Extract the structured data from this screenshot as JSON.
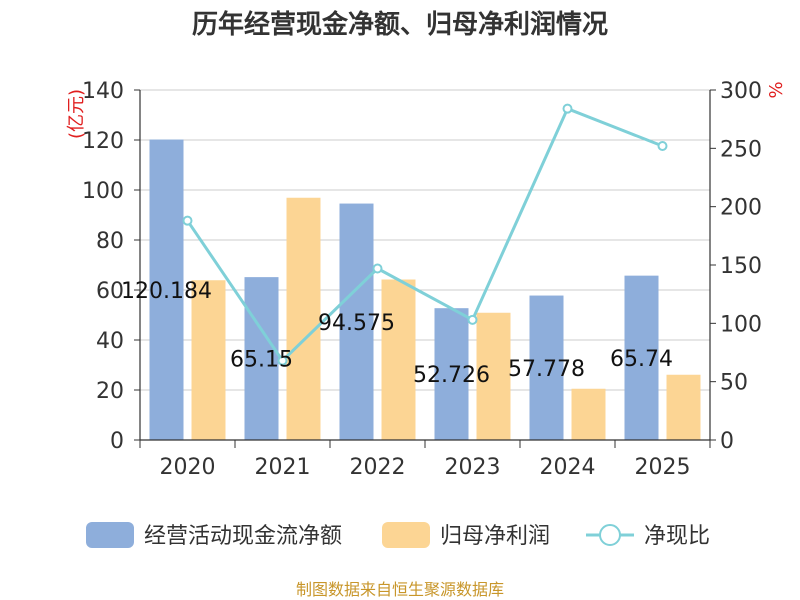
{
  "chart_data": {
    "type": "bar",
    "title": "历年经营现金净额、归母净利润情况",
    "categories": [
      "2020",
      "2021",
      "2022",
      "2023",
      "2024",
      "2025"
    ],
    "left_axis": {
      "unit_label": "(亿元)",
      "ylim": [
        0,
        140
      ],
      "ticks": [
        "0",
        "20",
        "40",
        "60",
        "80",
        "100",
        "120",
        "140"
      ]
    },
    "right_axis": {
      "unit_label": "%",
      "ylim": [
        0,
        300
      ],
      "ticks": [
        "0",
        "50",
        "100",
        "150",
        "200",
        "250",
        "300"
      ]
    },
    "series": [
      {
        "name": "经营活动现金流净额",
        "type": "bar",
        "axis": "left",
        "color": "#8eaedb",
        "values": [
          120.184,
          65.15,
          94.575,
          52.726,
          57.778,
          65.74
        ],
        "labels": [
          "120.184",
          "65.15",
          "94.575",
          "52.726",
          "57.778",
          "65.74"
        ]
      },
      {
        "name": "归母净利润",
        "type": "bar",
        "axis": "left",
        "color": "#fcd594",
        "values": [
          63.9,
          96.9,
          64.2,
          50.9,
          20.5,
          26.1
        ]
      },
      {
        "name": "净现比",
        "type": "line",
        "axis": "right",
        "color": "#7fd0d8",
        "values": [
          188,
          68,
          147,
          103,
          284,
          252
        ]
      }
    ],
    "grid": true,
    "legend_position": "bottom"
  },
  "source": "制图数据来自恒生聚源数据库"
}
